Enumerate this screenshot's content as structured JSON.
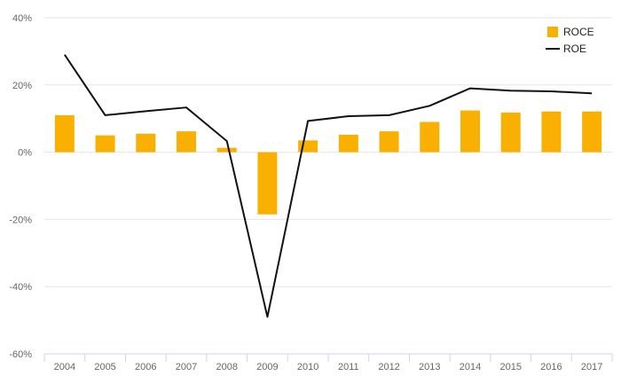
{
  "chart_data": {
    "type": "bar",
    "title": "",
    "xlabel": "",
    "ylabel": "",
    "categories": [
      "2004",
      "2005",
      "2006",
      "2007",
      "2008",
      "2009",
      "2010",
      "2011",
      "2012",
      "2013",
      "2014",
      "2015",
      "2016",
      "2017"
    ],
    "series": [
      {
        "name": "ROCE",
        "type": "bar",
        "color": "#F9B000",
        "values": [
          11,
          5,
          5.5,
          6.2,
          1.3,
          -18.5,
          3.5,
          5.2,
          6.2,
          9,
          12.4,
          11.8,
          12.1,
          12.1
        ]
      },
      {
        "name": "ROE",
        "type": "line",
        "color": "#111111",
        "values": [
          29,
          11,
          12.2,
          13.3,
          3.3,
          -49,
          9.3,
          10.7,
          11,
          13.8,
          19,
          18.3,
          18.1,
          17.5
        ]
      }
    ],
    "ylim": [
      -60,
      40
    ],
    "yticks": [
      40,
      20,
      0,
      -20,
      -40,
      -60
    ],
    "ytick_labels": [
      "40%",
      "20%",
      "0%",
      "-20%",
      "-40%",
      "-60%"
    ],
    "grid": true,
    "legend": {
      "position": "top-right",
      "entries": [
        "ROCE",
        "ROE"
      ]
    },
    "colors": {
      "grid": "#E6E6E6",
      "axis": "#CCD6EB",
      "tick_text": "#666666"
    }
  }
}
